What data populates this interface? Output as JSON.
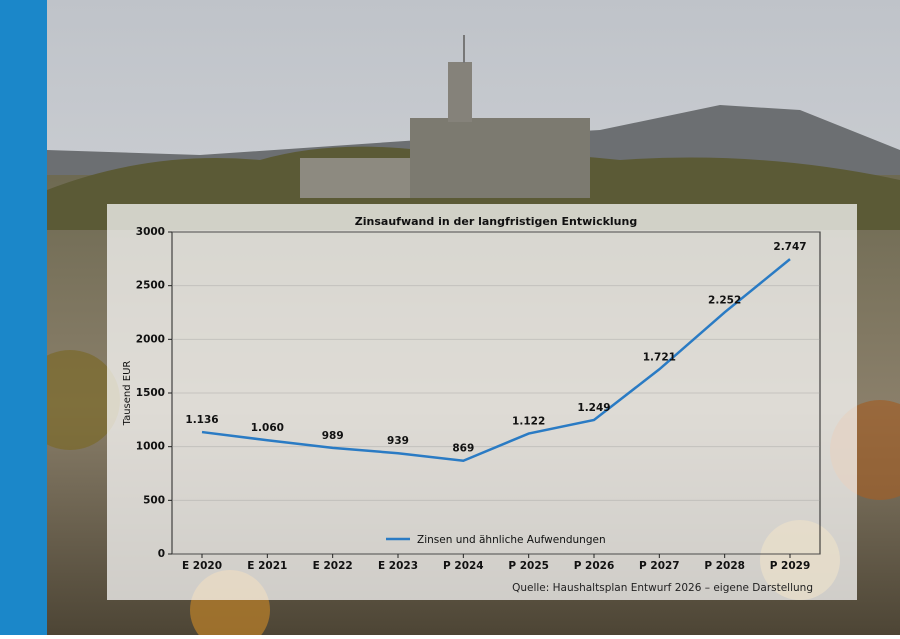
{
  "chart_data": {
    "type": "line",
    "title": "Zinsaufwand in der langfristigen Entwicklung",
    "y_label": "Tausend EUR",
    "source": "Quelle: Haushaltsplan Entwurf 2026 – eigene Darstellung",
    "categories": [
      "E 2020",
      "E 2021",
      "E 2022",
      "E 2023",
      "P 2024",
      "P 2025",
      "P 2026",
      "P 2027",
      "P 2028",
      "P 2029"
    ],
    "series": [
      {
        "name": "Zinsen und ähnliche Aufwendungen",
        "color": "#2a7bc4",
        "values": [
          1136,
          1060,
          989,
          939,
          869,
          1122,
          1249,
          1721,
          2252,
          2747
        ],
        "value_labels": [
          "1.136",
          "1.060",
          "989",
          "939",
          "869",
          "1.122",
          "1.249",
          "1.721",
          "2.252",
          "2.747"
        ]
      }
    ],
    "ylim": [
      0,
      3000
    ],
    "yticks": [
      0,
      500,
      1000,
      1500,
      2000,
      2500,
      3000
    ],
    "grid": true,
    "legend": "bottom"
  }
}
